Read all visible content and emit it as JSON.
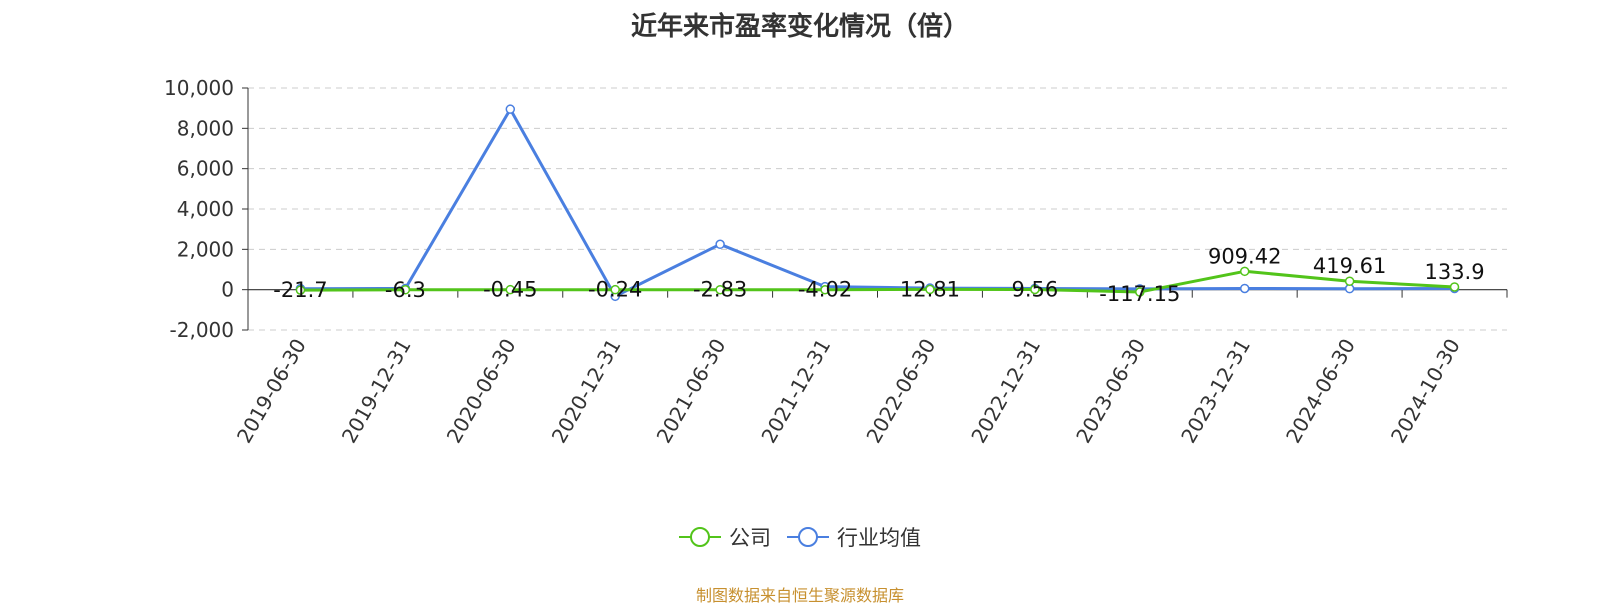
{
  "chart_data": {
    "type": "line",
    "title": "近年来市盈率变化情况（倍）",
    "categories": [
      "2019-06-30",
      "2019-12-31",
      "2020-06-30",
      "2020-12-31",
      "2021-06-30",
      "2021-12-31",
      "2022-06-30",
      "2022-12-31",
      "2023-06-30",
      "2023-12-31",
      "2024-06-30",
      "2024-10-30"
    ],
    "series": [
      {
        "name": "公司",
        "color": "#52c41a",
        "values": [
          -21.7,
          -6.3,
          -0.45,
          -0.24,
          -2.83,
          -4.02,
          12.81,
          9.56,
          -117.15,
          909.42,
          419.61,
          133.9
        ],
        "labels": [
          "-21.7",
          "-6.3",
          "-0.45",
          "-0.24",
          "-2.83",
          "-4.02",
          "12.81",
          "9.56",
          "-117.15",
          "909.42",
          "419.61",
          "133.9"
        ]
      },
      {
        "name": "行业均值",
        "color": "#4a7fe0",
        "values": [
          50,
          60,
          8950,
          -330,
          2250,
          150,
          80,
          60,
          40,
          60,
          50,
          60
        ]
      }
    ],
    "ylim": [
      -2000,
      10000
    ],
    "yticks": [
      "-2,000",
      "0",
      "2,000",
      "4,000",
      "6,000",
      "8,000",
      "10,000"
    ],
    "grid": true,
    "legend_position": "bottom"
  },
  "source_note": "制图数据来自恒生聚源数据库"
}
